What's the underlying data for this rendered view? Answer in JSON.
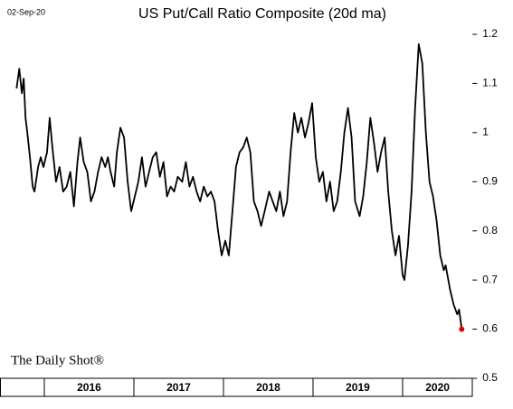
{
  "chart_data": {
    "type": "line",
    "title": "US Put/Call Ratio Composite (20d ma)",
    "date": "02-Sep-20",
    "source": "The Daily Shot®",
    "x": [
      2015.69,
      2015.72,
      2015.75,
      2015.77,
      2015.79,
      2015.81,
      2015.84,
      2015.87,
      2015.89,
      2015.93,
      2015.96,
      2015.99,
      2016.03,
      2016.06,
      2016.09,
      2016.13,
      2016.17,
      2016.21,
      2016.25,
      2016.29,
      2016.33,
      2016.37,
      2016.4,
      2016.44,
      2016.48,
      2016.52,
      2016.56,
      2016.6,
      2016.64,
      2016.68,
      2016.71,
      2016.74,
      2016.78,
      2016.81,
      2016.85,
      2016.89,
      2016.93,
      2016.97,
      2017.01,
      2017.05,
      2017.09,
      2017.13,
      2017.17,
      2017.21,
      2017.25,
      2017.29,
      2017.33,
      2017.37,
      2017.41,
      2017.45,
      2017.49,
      2017.54,
      2017.58,
      2017.62,
      2017.66,
      2017.7,
      2017.74,
      2017.78,
      2017.82,
      2017.86,
      2017.9,
      2017.94,
      2017.98,
      2018.02,
      2018.06,
      2018.1,
      2018.14,
      2018.18,
      2018.22,
      2018.26,
      2018.3,
      2018.34,
      2018.38,
      2018.42,
      2018.46,
      2018.51,
      2018.55,
      2018.59,
      2018.63,
      2018.67,
      2018.71,
      2018.75,
      2018.79,
      2018.83,
      2018.87,
      2018.91,
      2018.95,
      2018.99,
      2019.03,
      2019.07,
      2019.11,
      2019.15,
      2019.19,
      2019.23,
      2019.27,
      2019.31,
      2019.35,
      2019.39,
      2019.43,
      2019.47,
      2019.52,
      2019.56,
      2019.6,
      2019.64,
      2019.68,
      2019.72,
      2019.76,
      2019.8,
      2019.84,
      2019.88,
      2019.92,
      2019.96,
      2020.0,
      2020.02,
      2020.06,
      2020.1,
      2020.14,
      2020.18,
      2020.22,
      2020.26,
      2020.3,
      2020.34,
      2020.38,
      2020.42,
      2020.46,
      2020.48,
      2020.53,
      2020.57,
      2020.61,
      2020.63,
      2020.66
    ],
    "series": [
      {
        "name": "Put/Call Ratio",
        "color": "#000000",
        "end_marker_color": "#e00000",
        "values": [
          1.09,
          1.13,
          1.08,
          1.11,
          1.03,
          1.0,
          0.95,
          0.89,
          0.88,
          0.93,
          0.95,
          0.93,
          0.96,
          1.03,
          0.97,
          0.9,
          0.93,
          0.88,
          0.89,
          0.92,
          0.85,
          0.94,
          0.99,
          0.94,
          0.92,
          0.86,
          0.88,
          0.92,
          0.95,
          0.93,
          0.95,
          0.92,
          0.89,
          0.96,
          1.01,
          0.99,
          0.9,
          0.84,
          0.87,
          0.9,
          0.95,
          0.89,
          0.92,
          0.95,
          0.96,
          0.91,
          0.94,
          0.87,
          0.89,
          0.88,
          0.91,
          0.9,
          0.94,
          0.89,
          0.91,
          0.88,
          0.86,
          0.89,
          0.87,
          0.88,
          0.86,
          0.8,
          0.75,
          0.78,
          0.75,
          0.84,
          0.93,
          0.96,
          0.97,
          0.99,
          0.96,
          0.86,
          0.84,
          0.81,
          0.84,
          0.88,
          0.86,
          0.84,
          0.88,
          0.83,
          0.86,
          0.96,
          1.04,
          1.0,
          1.03,
          0.99,
          1.02,
          1.06,
          0.95,
          0.9,
          0.92,
          0.86,
          0.9,
          0.84,
          0.86,
          0.92,
          1.0,
          1.05,
          0.99,
          0.86,
          0.83,
          0.87,
          0.94,
          1.03,
          0.98,
          0.92,
          0.96,
          0.99,
          0.88,
          0.8,
          0.75,
          0.79,
          0.71,
          0.7,
          0.77,
          0.88,
          1.05,
          1.18,
          1.14,
          1.0,
          0.9,
          0.87,
          0.82,
          0.75,
          0.72,
          0.73,
          0.68,
          0.65,
          0.63,
          0.64,
          0.6
        ]
      }
    ],
    "xlim": [
      2015.69,
      2020.78
    ],
    "xticks": [
      2016,
      2017,
      2018,
      2019,
      2020
    ],
    "ylim": [
      0.5,
      1.2
    ],
    "yticks": [
      0.5,
      0.6,
      0.7,
      0.8,
      0.9,
      1.0,
      1.1,
      1.2
    ],
    "grid": false
  }
}
